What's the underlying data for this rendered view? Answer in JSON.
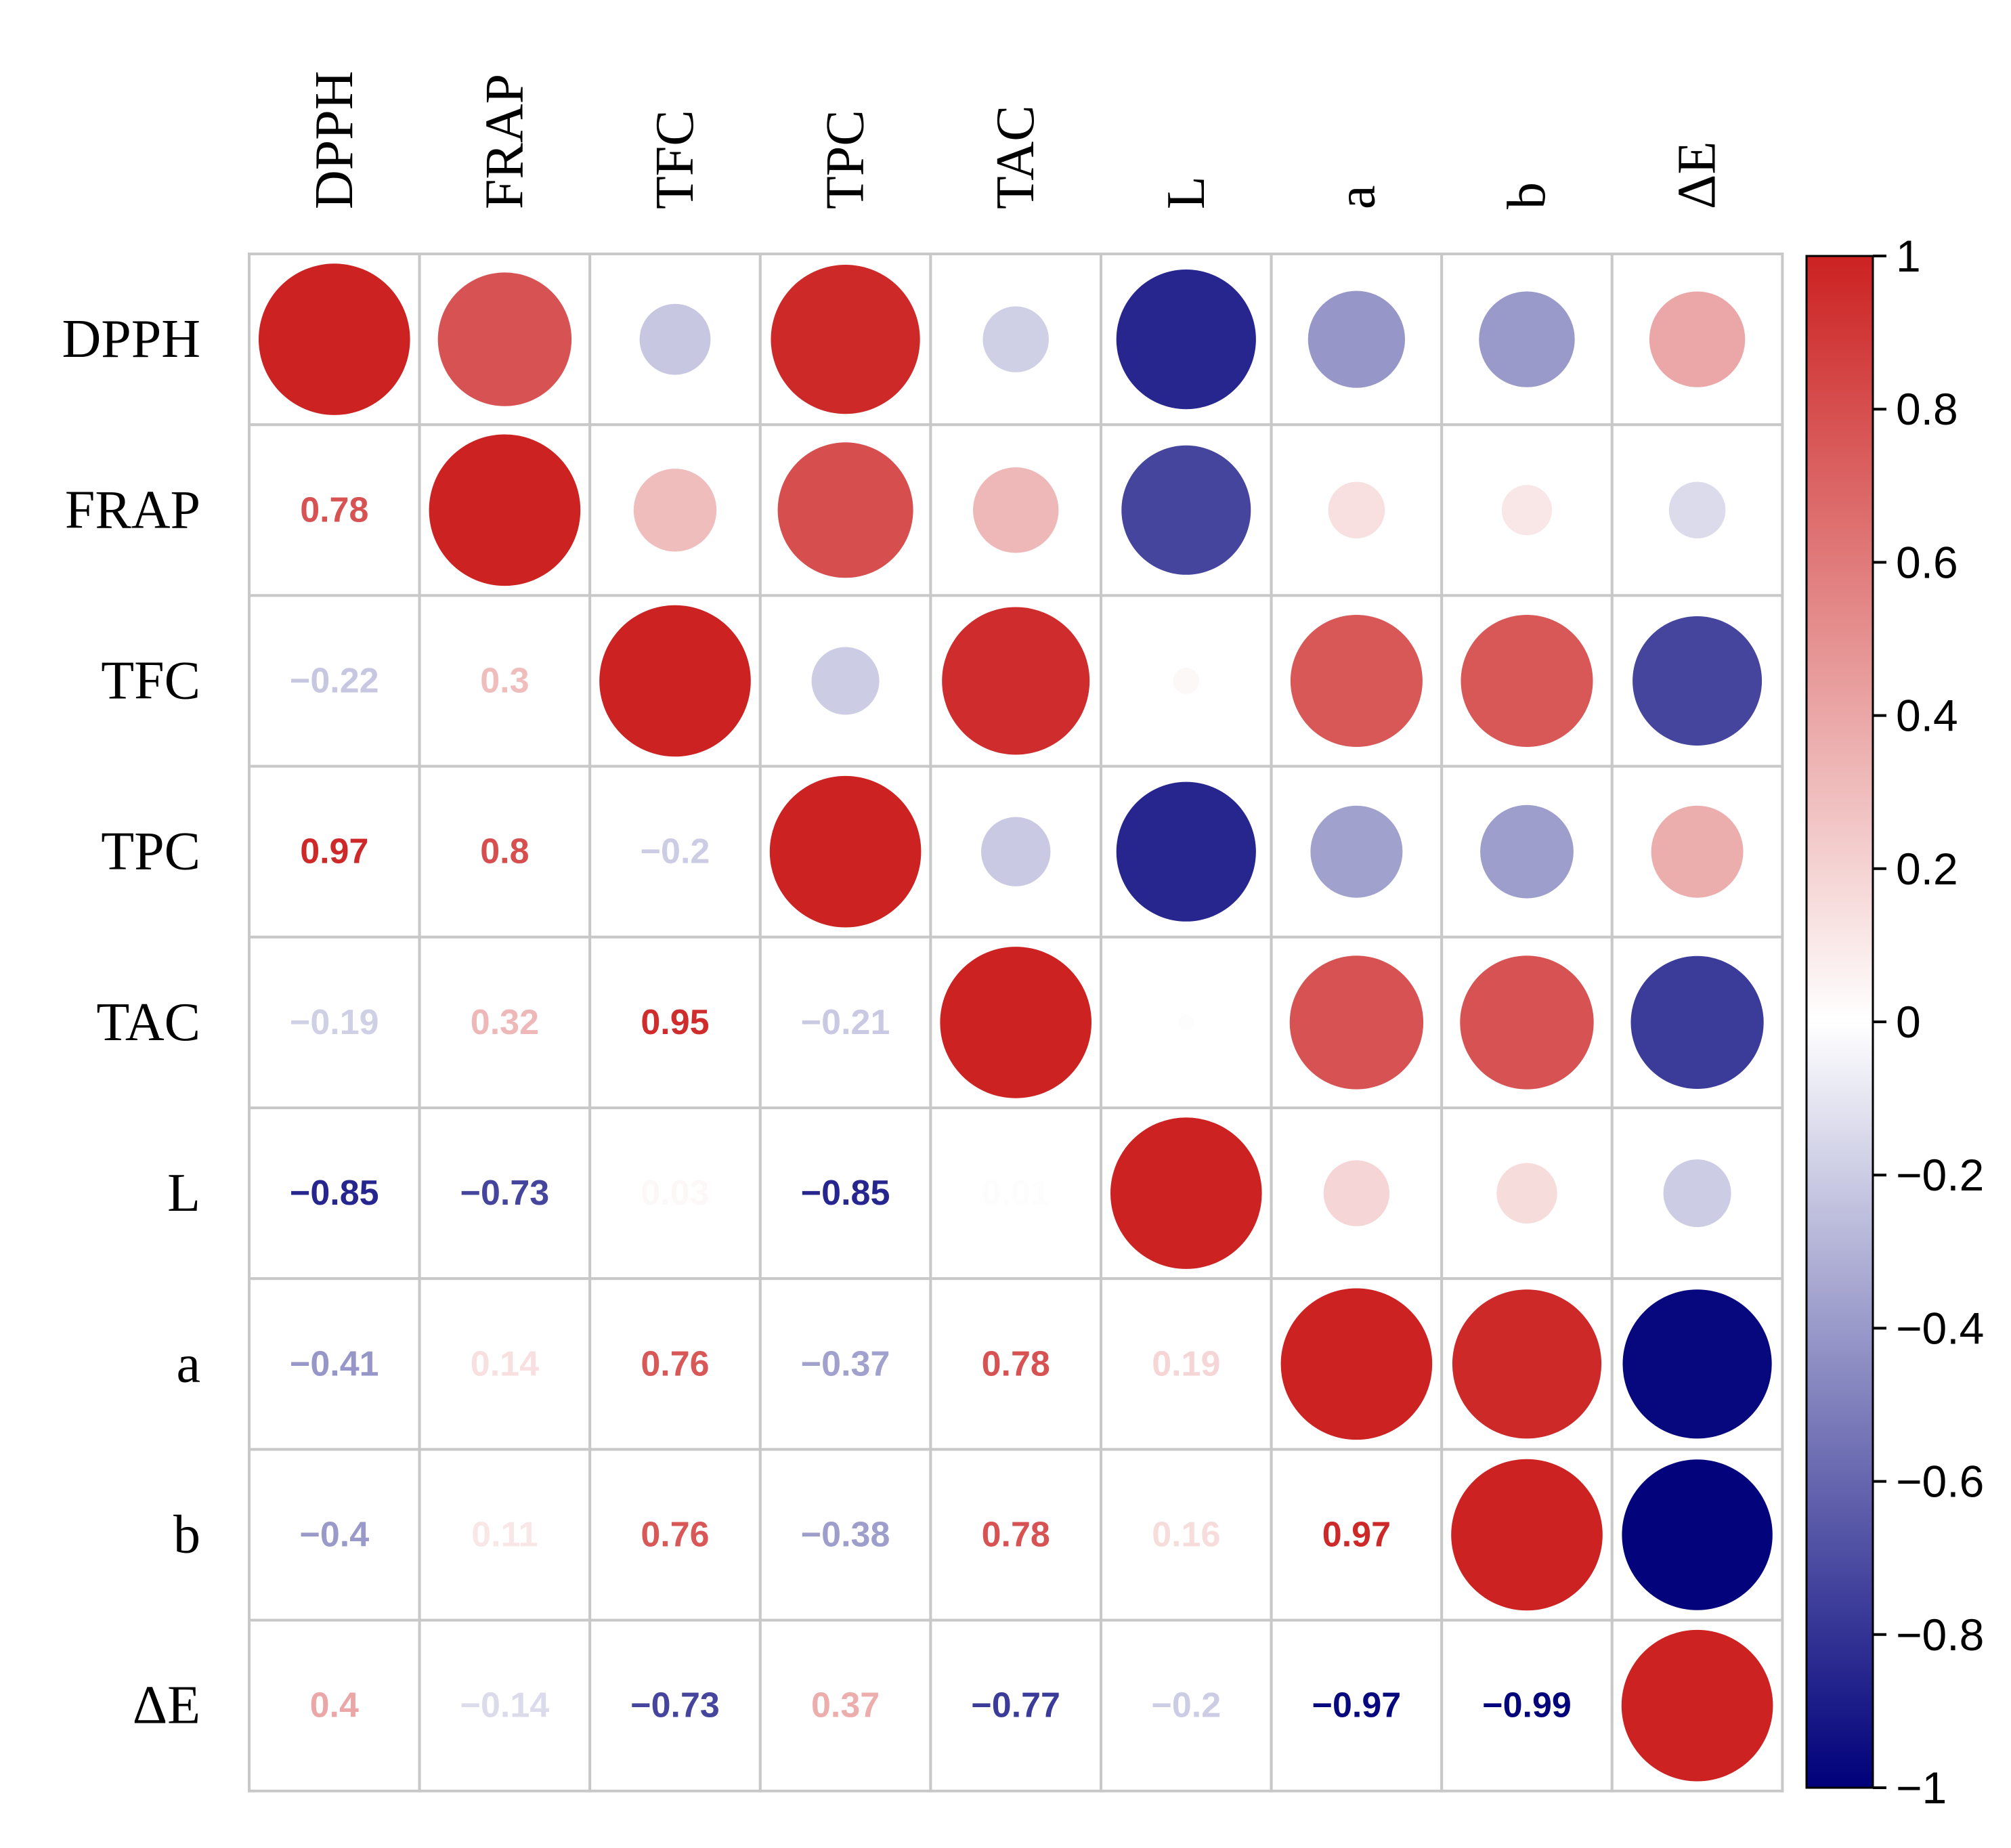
{
  "chart_data": {
    "type": "heatmap",
    "subtype": "correlation-circle-matrix",
    "variables": [
      "DPPH",
      "FRAP",
      "TFC",
      "TPC",
      "TAC",
      "L",
      "a",
      "b",
      "ΔE"
    ],
    "matrix": [
      [
        1,
        0.78,
        -0.22,
        0.97,
        -0.19,
        -0.85,
        -0.41,
        -0.4,
        0.4
      ],
      [
        0.78,
        1,
        0.3,
        0.8,
        0.32,
        -0.73,
        0.14,
        0.11,
        -0.14
      ],
      [
        -0.22,
        0.3,
        1,
        -0.2,
        0.95,
        0.03,
        0.76,
        0.76,
        -0.73
      ],
      [
        0.97,
        0.8,
        -0.2,
        1,
        -0.21,
        -0.85,
        -0.37,
        -0.38,
        0.37
      ],
      [
        -0.19,
        0.32,
        0.95,
        -0.21,
        1,
        0.01,
        0.78,
        0.78,
        -0.77
      ],
      [
        -0.85,
        -0.73,
        0.03,
        -0.85,
        0.01,
        1,
        0.19,
        0.16,
        -0.2
      ],
      [
        -0.41,
        0.14,
        0.76,
        -0.37,
        0.78,
        0.19,
        1,
        0.97,
        -0.97
      ],
      [
        -0.4,
        0.11,
        0.76,
        -0.38,
        0.78,
        0.16,
        0.97,
        1,
        -0.99
      ],
      [
        0.4,
        -0.14,
        -0.73,
        0.37,
        -0.77,
        -0.2,
        -0.97,
        -0.99,
        1
      ]
    ],
    "upper_triangle": "circles",
    "lower_triangle": "numbers",
    "diagonal": "circles",
    "colorbar": {
      "range": [
        -1,
        1
      ],
      "ticks": [
        "1",
        "0.8",
        "0.6",
        "0.4",
        "0.2",
        "0",
        "−0.2",
        "−0.4",
        "−0.6",
        "−0.8",
        "−1"
      ],
      "colors": {
        "negative": "#00007a",
        "zero": "#ffffff",
        "positive": "#cc2222"
      }
    }
  }
}
